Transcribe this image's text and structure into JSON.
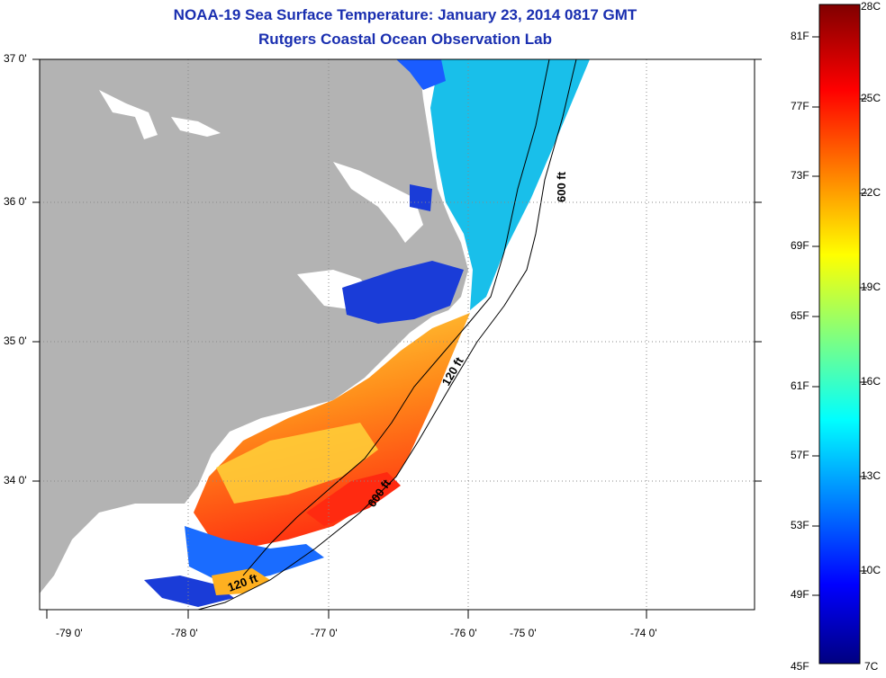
{
  "title": "NOAA-19 Sea Surface Temperature:  January 23, 2014 0817 GMT",
  "subtitle": "Rutgers Coastal Ocean Observation Lab",
  "latitude_labels": [
    "37 0'",
    "36 0'",
    "35 0'",
    "34 0'"
  ],
  "longitude_labels": [
    "-79 0'",
    "-78 0'",
    "-77 0'",
    "-76 0'",
    "-75 0'",
    "-74 0'"
  ],
  "contour_labels": [
    "600 ft",
    "120 ft",
    "600 ft",
    "120 ft"
  ],
  "colorbar": {
    "fahrenheit_labels": [
      "81F",
      "77F",
      "73F",
      "69F",
      "65F",
      "61F",
      "57F",
      "53F",
      "49F",
      "45F"
    ],
    "celsius_labels": [
      "28C",
      "25C",
      "22C",
      "19C",
      "16C",
      "13C",
      "10C",
      "7C"
    ],
    "range_f": [
      45,
      82.4
    ],
    "range_c": [
      7,
      28
    ]
  },
  "colors": {
    "title": "#1a2fb0",
    "land": "#b3b3b3",
    "no_data": "#ffffff"
  }
}
